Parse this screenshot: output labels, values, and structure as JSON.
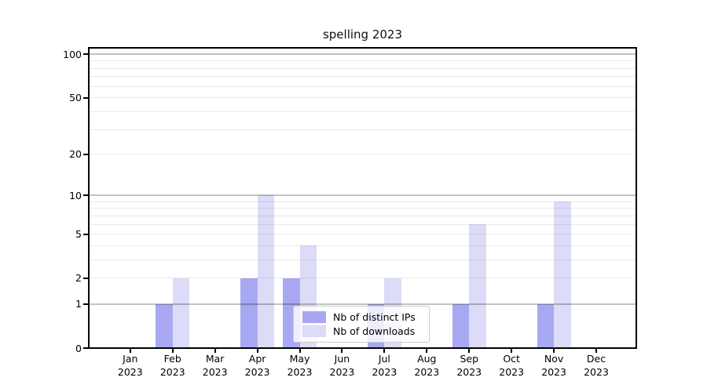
{
  "chart_data": {
    "type": "bar",
    "title": "spelling 2023",
    "scale": "log1p",
    "categories": [
      "Jan",
      "Feb",
      "Mar",
      "Apr",
      "May",
      "Jun",
      "Jul",
      "Aug",
      "Sep",
      "Oct",
      "Nov",
      "Dec"
    ],
    "category_year": "2023",
    "series": [
      {
        "name": "Nb of distinct IPs",
        "color": "#a8a8f2",
        "values": [
          0,
          1,
          0,
          2,
          2,
          0,
          1,
          0,
          1,
          0,
          1,
          0
        ]
      },
      {
        "name": "Nb of downloads",
        "color": "#dcdcf8",
        "values": [
          0,
          2,
          0,
          10,
          4,
          0,
          2,
          0,
          6,
          0,
          9,
          0
        ]
      }
    ],
    "y_ticks": [
      0,
      1,
      2,
      5,
      10,
      20,
      50,
      100
    ],
    "y_major_gridlines": [
      1,
      10,
      100
    ],
    "y_minor_gridlines": [
      2,
      3,
      4,
      5,
      6,
      7,
      8,
      9,
      20,
      30,
      40,
      50,
      60,
      70,
      80,
      90
    ],
    "ylim": [
      0,
      111
    ],
    "xlabel": "",
    "ylabel": "",
    "grid": "on",
    "legend_position": "lower center",
    "colors": {
      "background": "#ffffff",
      "spine": "#000000",
      "major_grid": "#b5b5b5",
      "minor_grid": "#e9e9e9",
      "text": "#000000"
    }
  }
}
